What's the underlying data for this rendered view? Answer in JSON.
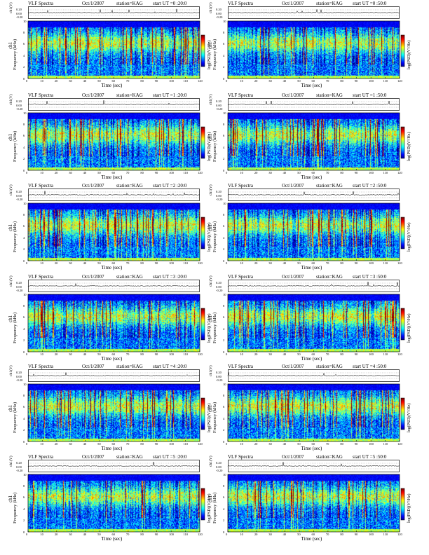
{
  "chart_data": [
    {
      "type": "heatmap",
      "title": {
        "left": "VLF Spectra",
        "date": "Oct/1/2007",
        "station": "station=KAG",
        "start": "start  UT =0 :20:0"
      },
      "y_top_label": "ch1(V)",
      "y_top_ticks": [
        "0.20",
        "0.00",
        "-0.20"
      ],
      "ylabel": "Frequency  (kHz)",
      "ylabel_prefix": "ch1",
      "yticks": [
        "10",
        "8",
        "6",
        "4",
        "2",
        "0"
      ],
      "ylim": [
        0,
        10
      ],
      "xlabel": "Time  (sec)",
      "xticks": [
        "0",
        "10",
        "20",
        "30",
        "40",
        "50",
        "60",
        "70",
        "80",
        "90",
        "100",
        "110",
        "120"
      ],
      "xlim": [
        0,
        120
      ],
      "colorbar_label": "log(PSD)(V²/Hz)",
      "colorbar_ticks": [
        "",
        "",
        "",
        ""
      ]
    },
    {
      "type": "heatmap",
      "title": {
        "left": "VLF Spectra",
        "date": "Oct/1/2007",
        "station": "station=KAG",
        "start": "start  UT =0 :50:0"
      },
      "y_top_label": "ch1(V)",
      "y_top_ticks": [
        "0.20",
        "0.00",
        "-0.20"
      ],
      "ylabel": "Frequency  (kHz)",
      "ylabel_prefix": "ch1",
      "yticks": [
        "10",
        "8",
        "6",
        "4",
        "2",
        "0"
      ],
      "ylim": [
        0,
        10
      ],
      "xlabel": "Time  (sec)",
      "xticks": [
        "0",
        "10",
        "20",
        "30",
        "40",
        "50",
        "60",
        "70",
        "80",
        "90",
        "100",
        "110",
        "120"
      ],
      "xlim": [
        0,
        120
      ],
      "colorbar_label": "log(PSD)(V²/Hz)",
      "colorbar_ticks": [
        "",
        "",
        "",
        ""
      ]
    },
    {
      "type": "heatmap",
      "title": {
        "left": "VLF Spectra",
        "date": "Oct/1/2007",
        "station": "station=KAG",
        "start": "start  UT =1 :20:0"
      },
      "y_top_label": "ch1(V)",
      "y_top_ticks": [
        "0.20",
        "0.00",
        "-0.20"
      ],
      "ylabel": "Frequency  (kHz)",
      "ylabel_prefix": "ch1",
      "yticks": [
        "10",
        "8",
        "6",
        "4",
        "2",
        "0"
      ],
      "ylim": [
        0,
        10
      ],
      "xlabel": "Time  (sec)",
      "xticks": [
        "0",
        "10",
        "20",
        "30",
        "40",
        "50",
        "60",
        "70",
        "80",
        "90",
        "100",
        "110",
        "120"
      ],
      "xlim": [
        0,
        120
      ],
      "colorbar_label": "log(PSD)(V²/Hz)",
      "colorbar_ticks": [
        "",
        "",
        "",
        ""
      ]
    },
    {
      "type": "heatmap",
      "title": {
        "left": "VLF Spectra",
        "date": "Oct/1/2007",
        "station": "station=KAG",
        "start": "start  UT =1 :50:0"
      },
      "y_top_label": "ch1(V)",
      "y_top_ticks": [
        "0.20",
        "0.00",
        "-0.20"
      ],
      "ylabel": "Frequency  (kHz)",
      "ylabel_prefix": "ch1",
      "yticks": [
        "10",
        "8",
        "6",
        "4",
        "2",
        "0"
      ],
      "ylim": [
        0,
        10
      ],
      "xlabel": "Time  (sec)",
      "xticks": [
        "0",
        "10",
        "20",
        "30",
        "40",
        "50",
        "60",
        "70",
        "80",
        "90",
        "100",
        "110",
        "120"
      ],
      "xlim": [
        0,
        120
      ],
      "colorbar_label": "log(PSD)(V²/Hz)",
      "colorbar_ticks": [
        "",
        "",
        "",
        ""
      ]
    },
    {
      "type": "heatmap",
      "title": {
        "left": "VLF Spectra",
        "date": "Oct/1/2007",
        "station": "station=KAG",
        "start": "start  UT =2 :20:0"
      },
      "y_top_label": "ch1(V)",
      "y_top_ticks": [
        "0.20",
        "0.00",
        "-0.20"
      ],
      "ylabel": "Frequency  (kHz)",
      "ylabel_prefix": "ch1",
      "yticks": [
        "10",
        "8",
        "6",
        "4",
        "2",
        "0"
      ],
      "ylim": [
        0,
        10
      ],
      "xlabel": "Time  (sec)",
      "xticks": [
        "0",
        "10",
        "20",
        "30",
        "40",
        "50",
        "60",
        "70",
        "80",
        "90",
        "100",
        "110",
        "120"
      ],
      "xlim": [
        0,
        120
      ],
      "colorbar_label": "log(PSD)(V²/Hz)",
      "colorbar_ticks": [
        "",
        "",
        "",
        ""
      ]
    },
    {
      "type": "heatmap",
      "title": {
        "left": "VLF Spectra",
        "date": "Oct/1/2007",
        "station": "station=KAG",
        "start": "start  UT =2 :50:0"
      },
      "y_top_label": "ch1(V)",
      "y_top_ticks": [
        "0.20",
        "0.00",
        "-0.20"
      ],
      "ylabel": "Frequency  (kHz)",
      "ylabel_prefix": "ch1",
      "yticks": [
        "10",
        "8",
        "6",
        "4",
        "2",
        "0"
      ],
      "ylim": [
        0,
        10
      ],
      "xlabel": "Time  (sec)",
      "xticks": [
        "0",
        "10",
        "20",
        "30",
        "40",
        "50",
        "60",
        "70",
        "80",
        "90",
        "100",
        "110",
        "120"
      ],
      "xlim": [
        0,
        120
      ],
      "colorbar_label": "log(PSD)(V²/Hz)",
      "colorbar_ticks": [
        "",
        "",
        "",
        ""
      ]
    },
    {
      "type": "heatmap",
      "title": {
        "left": "VLF Spectra",
        "date": "Oct/1/2007",
        "station": "station=KAG",
        "start": "start  UT =3 :20:0"
      },
      "y_top_label": "ch1(V)",
      "y_top_ticks": [
        "0.20",
        "0.00",
        "-0.20"
      ],
      "ylabel": "Frequency  (kHz)",
      "ylabel_prefix": "ch1",
      "yticks": [
        "10",
        "8",
        "6",
        "4",
        "2",
        "0"
      ],
      "ylim": [
        0,
        10
      ],
      "xlabel": "Time  (sec)",
      "xticks": [
        "0",
        "10",
        "20",
        "30",
        "40",
        "50",
        "60",
        "70",
        "80",
        "90",
        "100",
        "110",
        "120"
      ],
      "xlim": [
        0,
        120
      ],
      "colorbar_label": "log(PSD)(V²/Hz)",
      "colorbar_ticks": [
        "",
        "",
        "",
        ""
      ]
    },
    {
      "type": "heatmap",
      "title": {
        "left": "VLF Spectra",
        "date": "Oct/1/2007",
        "station": "station=KAG",
        "start": "start  UT =3 :50:0"
      },
      "y_top_label": "ch1(V)",
      "y_top_ticks": [
        "0.20",
        "0.00",
        "-0.20"
      ],
      "ylabel": "Frequency  (kHz)",
      "ylabel_prefix": "ch1",
      "yticks": [
        "10",
        "8",
        "6",
        "4",
        "2",
        "0"
      ],
      "ylim": [
        0,
        10
      ],
      "xlabel": "Time  (sec)",
      "xticks": [
        "0",
        "10",
        "20",
        "30",
        "40",
        "50",
        "60",
        "70",
        "80",
        "90",
        "100",
        "110",
        "120"
      ],
      "xlim": [
        0,
        120
      ],
      "colorbar_label": "log(PSD)(V²/Hz)",
      "colorbar_ticks": [
        "",
        "",
        "",
        ""
      ]
    },
    {
      "type": "heatmap",
      "title": {
        "left": "VLF Spectra",
        "date": "Oct/1/2007",
        "station": "station=KAG",
        "start": "start  UT =4 :20:0"
      },
      "y_top_label": "ch1(V)",
      "y_top_ticks": [
        "0.20",
        "0.00",
        "-0.20"
      ],
      "ylabel": "Frequency  (kHz)",
      "ylabel_prefix": "ch1",
      "yticks": [
        "10",
        "8",
        "6",
        "4",
        "2",
        "0"
      ],
      "ylim": [
        0,
        10
      ],
      "xlabel": "Time  (sec)",
      "xticks": [
        "0",
        "10",
        "20",
        "30",
        "40",
        "50",
        "60",
        "70",
        "80",
        "90",
        "100",
        "110",
        "120"
      ],
      "xlim": [
        0,
        120
      ],
      "colorbar_label": "log(PSD)(V²/Hz)",
      "colorbar_ticks": [
        "",
        "",
        "",
        ""
      ]
    },
    {
      "type": "heatmap",
      "title": {
        "left": "VLF Spectra",
        "date": "Oct/1/2007",
        "station": "station=KAG",
        "start": "start  UT =4 :50:0"
      },
      "y_top_label": "ch1(V)",
      "y_top_ticks": [
        "0.20",
        "0.00",
        "-0.20"
      ],
      "ylabel": "Frequency  (kHz)",
      "ylabel_prefix": "ch1",
      "yticks": [
        "10",
        "8",
        "6",
        "4",
        "2",
        "0"
      ],
      "ylim": [
        0,
        10
      ],
      "xlabel": "Time  (sec)",
      "xticks": [
        "0",
        "10",
        "20",
        "30",
        "40",
        "50",
        "60",
        "70",
        "80",
        "90",
        "100",
        "110",
        "120"
      ],
      "xlim": [
        0,
        120
      ],
      "colorbar_label": "log(PSD)(V²/Hz)",
      "colorbar_ticks": [
        "",
        "",
        "",
        ""
      ]
    },
    {
      "type": "heatmap",
      "title": {
        "left": "VLF Spectra",
        "date": "Oct/1/2007",
        "station": "station=KAG",
        "start": "start  UT =5 :20:0"
      },
      "y_top_label": "ch1(V)",
      "y_top_ticks": [
        "0.20",
        "0.00",
        "-0.20"
      ],
      "ylabel": "Frequency  (kHz)",
      "ylabel_prefix": "ch1",
      "yticks": [
        "10",
        "8",
        "6",
        "4",
        "2",
        "0"
      ],
      "ylim": [
        0,
        10
      ],
      "xlabel": "Time  (sec)",
      "xticks": [
        "0",
        "10",
        "20",
        "30",
        "40",
        "50",
        "60",
        "70",
        "80",
        "90",
        "100",
        "110",
        "120"
      ],
      "xlim": [
        0,
        120
      ],
      "colorbar_label": "log(PSD)(V²/Hz)",
      "colorbar_ticks": [
        "",
        "",
        "",
        ""
      ]
    },
    {
      "type": "heatmap",
      "title": {
        "left": "VLF Spectra",
        "date": "Oct/1/2007",
        "station": "station=KAG",
        "start": "start  UT =5 :50:0"
      },
      "y_top_label": "ch1(V)",
      "y_top_ticks": [
        "0.20",
        "0.00",
        "-0.20"
      ],
      "ylabel": "Frequency  (kHz)",
      "ylabel_prefix": "ch1",
      "yticks": [
        "10",
        "8",
        "6",
        "4",
        "2",
        "0"
      ],
      "ylim": [
        0,
        10
      ],
      "xlabel": "Time  (sec)",
      "xticks": [
        "0",
        "10",
        "20",
        "30",
        "40",
        "50",
        "60",
        "70",
        "80",
        "90",
        "100",
        "110",
        "120"
      ],
      "xlim": [
        0,
        120
      ],
      "colorbar_label": "log(PSD)(V²/Hz)",
      "colorbar_ticks": [
        "",
        "",
        "",
        ""
      ]
    }
  ],
  "colors": {
    "colormap": [
      "#00007f",
      "#0000ff",
      "#007fff",
      "#00ffff",
      "#7fff7f",
      "#ffff00",
      "#ff7f00",
      "#ff0000",
      "#7f0000"
    ],
    "axis": "#000000",
    "background": "#ffffff"
  }
}
